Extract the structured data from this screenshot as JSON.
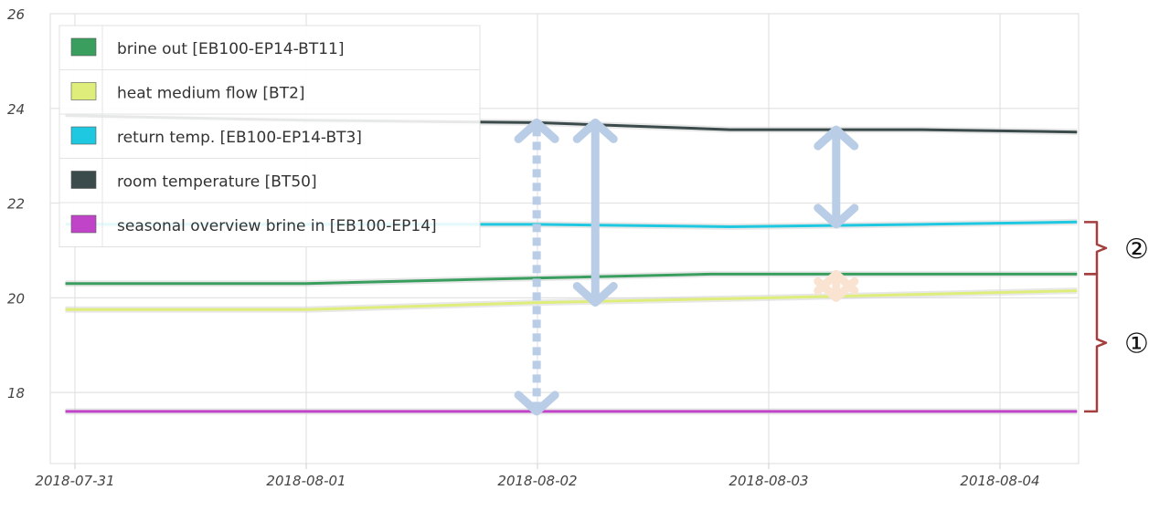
{
  "chart_data": {
    "type": "line",
    "title": "",
    "xlabel": "",
    "ylabel": "",
    "x_ticks": [
      "2018-07-31",
      "2018-08-01",
      "2018-08-02",
      "2018-08-03",
      "2018-08-04"
    ],
    "xlim": [
      "2018-07-30 23:00",
      "2018-08-04 08:00"
    ],
    "ylim": [
      16.5,
      26
    ],
    "y_ticks": [
      "18",
      "20",
      "22",
      "24",
      "26"
    ],
    "grid": true,
    "legend_placement": "top-left",
    "series": [
      {
        "name": "brine out [EB100-EP14-BT11]",
        "color": "#3a9e5f",
        "x": [
          "2018-07-30 23:00",
          "2018-08-01 00:00",
          "2018-08-01 20:00",
          "2018-08-02 18:00",
          "2018-08-04 08:00"
        ],
        "y": [
          20.3,
          20.3,
          20.4,
          20.5,
          20.5
        ]
      },
      {
        "name": "heat medium flow [BT2]",
        "color": "#dfee7a",
        "x": [
          "2018-07-30 23:00",
          "2018-08-01 00:00",
          "2018-08-02 00:00",
          "2018-08-03 00:00",
          "2018-08-04 08:00"
        ],
        "y": [
          19.75,
          19.75,
          19.9,
          20.0,
          20.15
        ]
      },
      {
        "name": "return temp. [EB100-EP14-BT3]",
        "color": "#1ec8e0",
        "x": [
          "2018-07-30 23:00",
          "2018-08-02 00:00",
          "2018-08-02 20:00",
          "2018-08-03 16:00",
          "2018-08-04 08:00"
        ],
        "y": [
          21.55,
          21.55,
          21.5,
          21.55,
          21.6
        ]
      },
      {
        "name": "room temperature [BT50]",
        "color": "#3b4a4a",
        "x": [
          "2018-07-30 23:00",
          "2018-08-01 00:00",
          "2018-08-02 00:00",
          "2018-08-02 20:00",
          "2018-08-03 16:00",
          "2018-08-04 08:00"
        ],
        "y": [
          23.85,
          23.75,
          23.7,
          23.55,
          23.55,
          23.5
        ]
      },
      {
        "name": "seasonal overview brine in [EB100-EP14]",
        "color": "#c044c8",
        "x": [
          "2018-07-30 23:00",
          "2018-08-04 08:00"
        ],
        "y": [
          17.6,
          17.6
        ]
      }
    ],
    "annotations": {
      "arrows": [
        {
          "style": "dashed",
          "color": "#b9cde6",
          "x": "2018-08-01 23:55",
          "y_from": 17.6,
          "y_to": 23.7
        },
        {
          "style": "solid",
          "color": "#b9cde6",
          "x": "2018-08-02 06:00",
          "y_from": 19.9,
          "y_to": 23.7
        },
        {
          "style": "solid",
          "color": "#b9cde6",
          "x": "2018-08-03 07:00",
          "y_from": 21.55,
          "y_to": 23.55
        },
        {
          "style": "solid",
          "color": "#fbe3d2",
          "x": "2018-08-03 07:00",
          "y_from": 20.0,
          "y_to": 20.5
        }
      ],
      "brackets": [
        {
          "label": "②",
          "color": "#a33f3f",
          "y_from": 20.5,
          "y_to": 21.6
        },
        {
          "label": "①",
          "color": "#a33f3f",
          "y_from": 17.6,
          "y_to": 20.5
        }
      ]
    }
  }
}
